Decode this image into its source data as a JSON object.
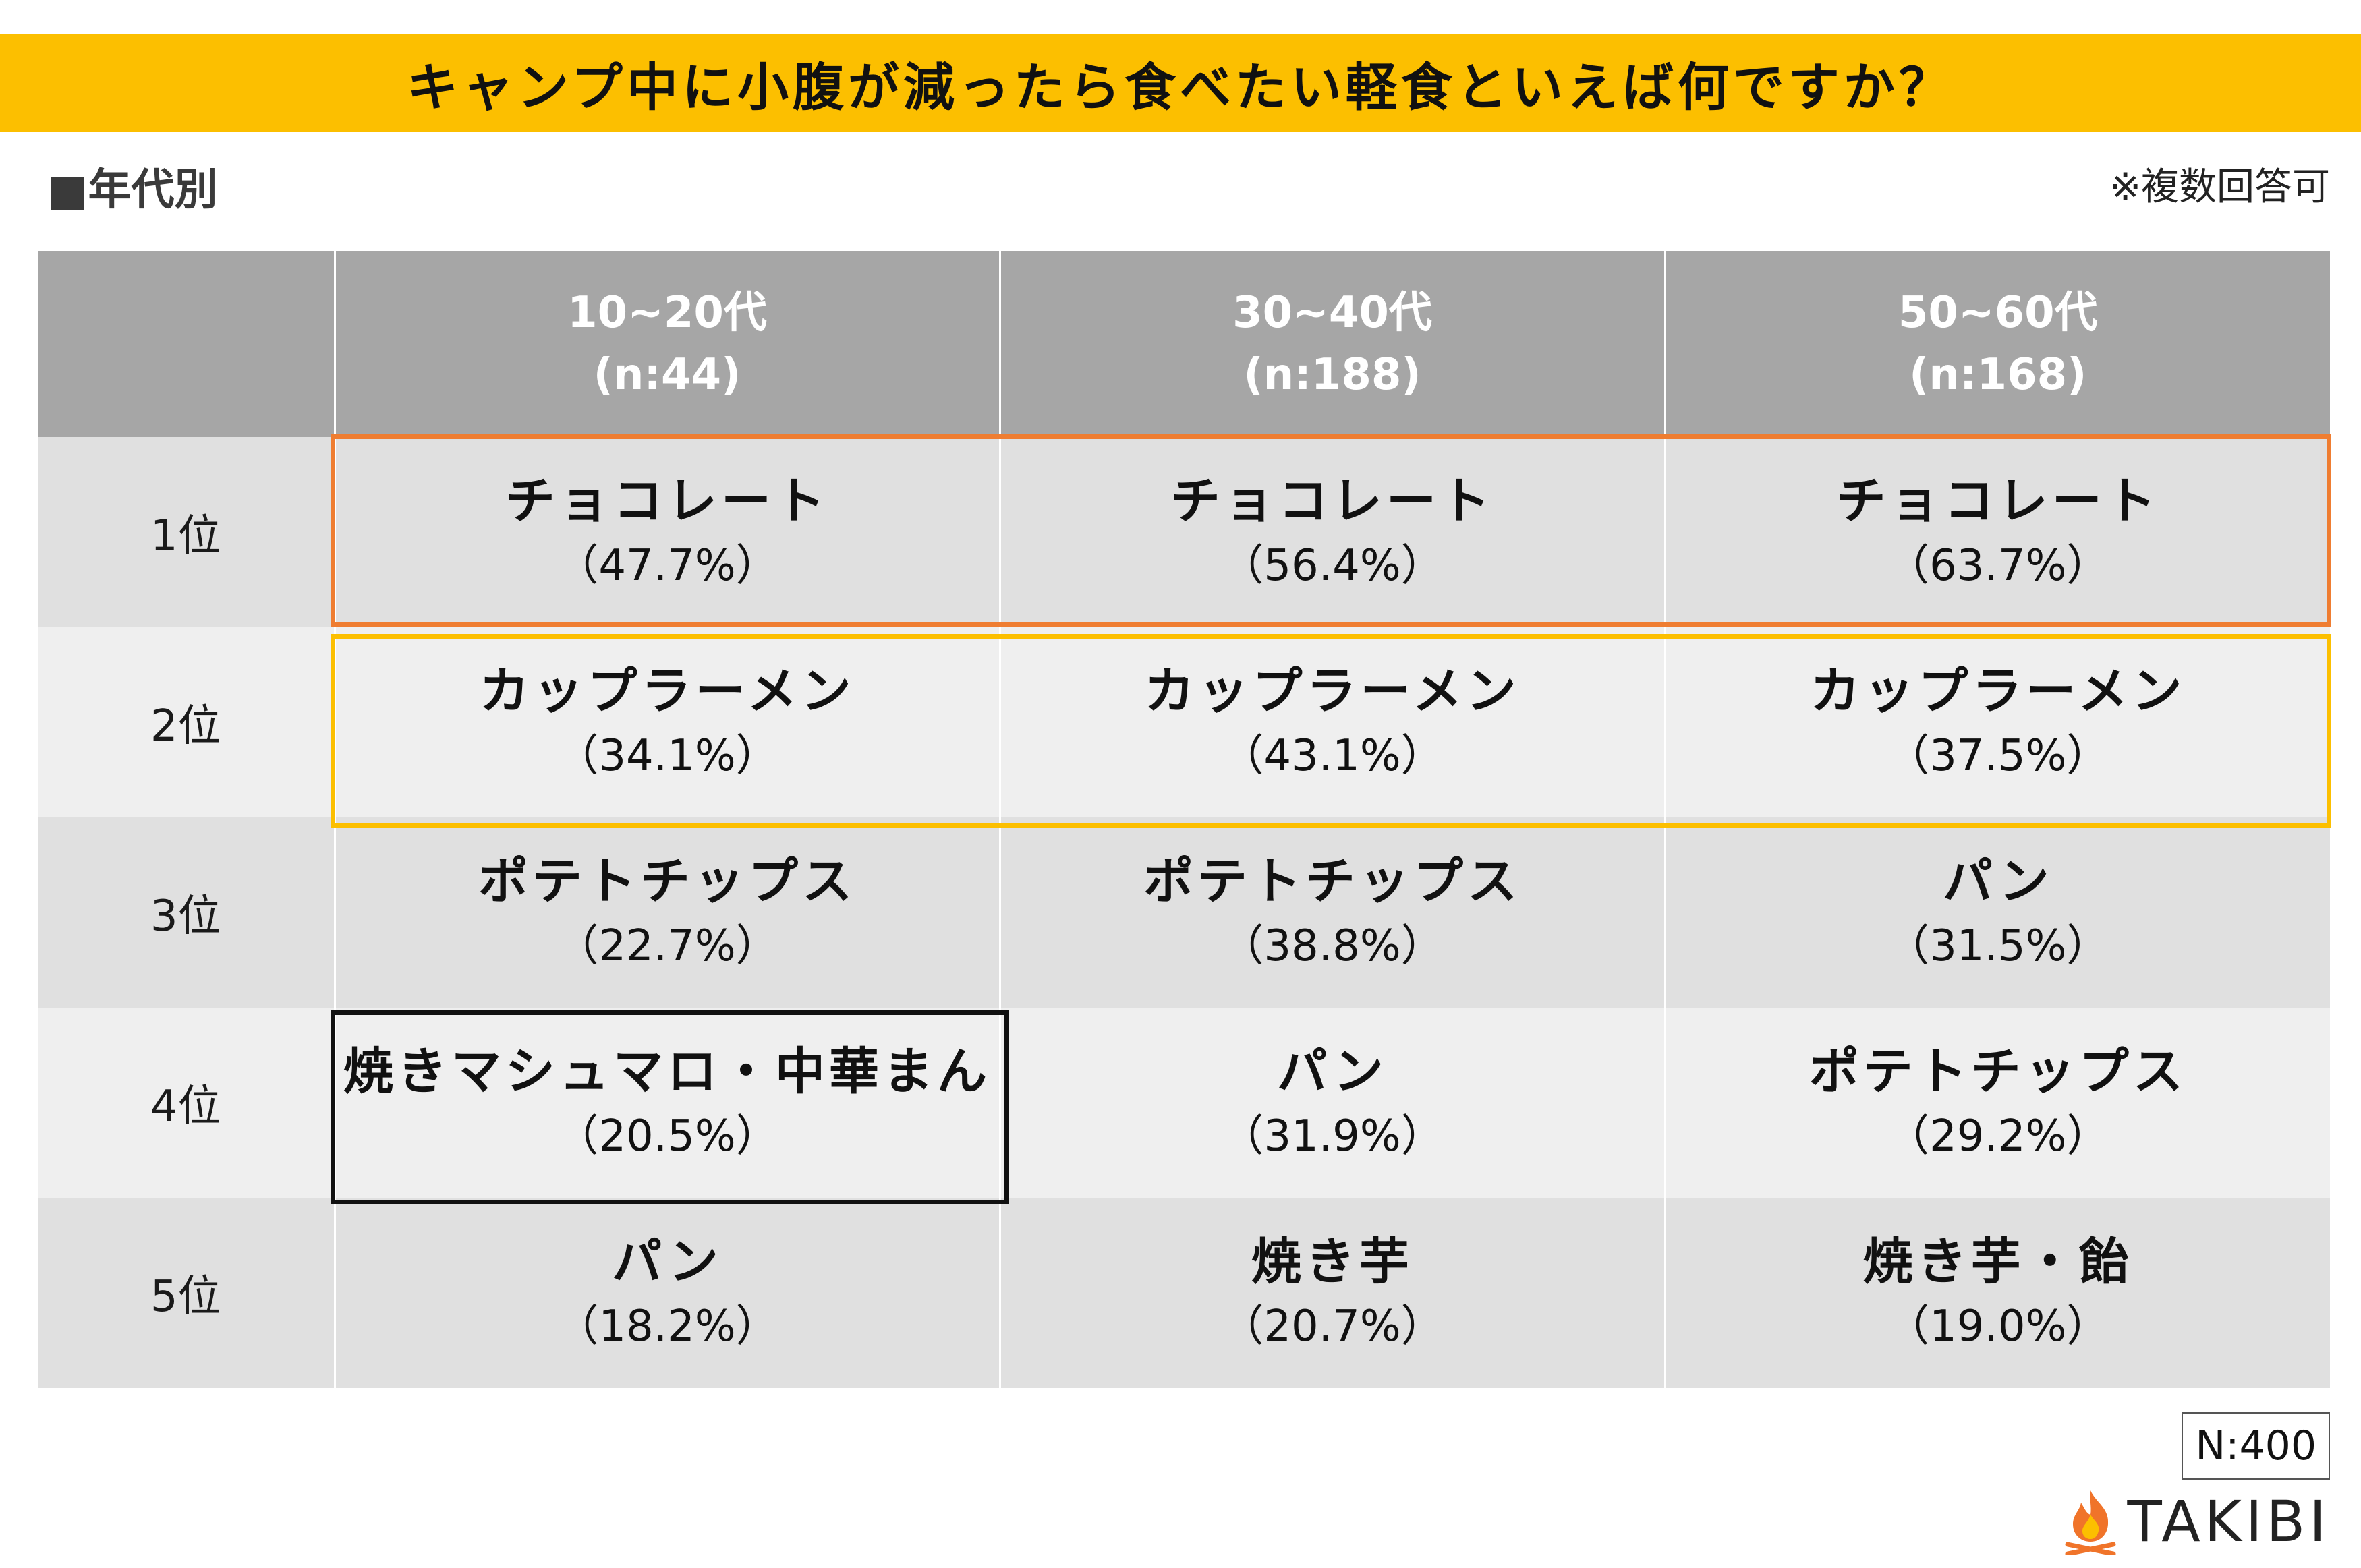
{
  "title": "キャンプ中に小腹が減ったら食べたい軽食といえば何ですか？",
  "section_label": "■年代別",
  "note": "※複数回答可",
  "sample_total": "N:400",
  "brand": {
    "name": "TAKIBI",
    "icon": "flame-icon",
    "icon_color": "#f0742a"
  },
  "colors": {
    "banner": "#fcbf00",
    "highlight_rank1": "#ef7d31",
    "highlight_rank2": "#fcbf00",
    "highlight_box": "#111111"
  },
  "chart_data": {
    "type": "table",
    "columns": [
      {
        "label": "10~20代",
        "n": "(n:44)"
      },
      {
        "label": "30~40代",
        "n": "(n:188)"
      },
      {
        "label": "50~60代",
        "n": "(n:168)"
      }
    ],
    "rows": [
      {
        "rank": "1位",
        "cells": [
          {
            "item": "チョコレート",
            "pct": "（47.7%）",
            "value": 47.7
          },
          {
            "item": "チョコレート",
            "pct": "（56.4%）",
            "value": 56.4
          },
          {
            "item": "チョコレート",
            "pct": "（63.7%）",
            "value": 63.7
          }
        ]
      },
      {
        "rank": "2位",
        "cells": [
          {
            "item": "カップラーメン",
            "pct": "（34.1%）",
            "value": 34.1
          },
          {
            "item": "カップラーメン",
            "pct": "（43.1%）",
            "value": 43.1
          },
          {
            "item": "カップラーメン",
            "pct": "（37.5%）",
            "value": 37.5
          }
        ]
      },
      {
        "rank": "3位",
        "cells": [
          {
            "item": "ポテトチップス",
            "pct": "（22.7%）",
            "value": 22.7
          },
          {
            "item": "ポテトチップス",
            "pct": "（38.8%）",
            "value": 38.8
          },
          {
            "item": "パン",
            "pct": "（31.5%）",
            "value": 31.5
          }
        ]
      },
      {
        "rank": "4位",
        "cells": [
          {
            "item": "焼きマシュマロ・中華まん",
            "pct": "（20.5%）",
            "value": 20.5
          },
          {
            "item": "パン",
            "pct": "（31.9%）",
            "value": 31.9
          },
          {
            "item": "ポテトチップス",
            "pct": "（29.2%）",
            "value": 29.2
          }
        ]
      },
      {
        "rank": "5位",
        "cells": [
          {
            "item": "パン",
            "pct": "（18.2%）",
            "value": 18.2
          },
          {
            "item": "焼き芋",
            "pct": "（20.7%）",
            "value": 20.7
          },
          {
            "item": "焼き芋・飴",
            "pct": "（19.0%）",
            "value": 19.0
          }
        ]
      }
    ]
  }
}
